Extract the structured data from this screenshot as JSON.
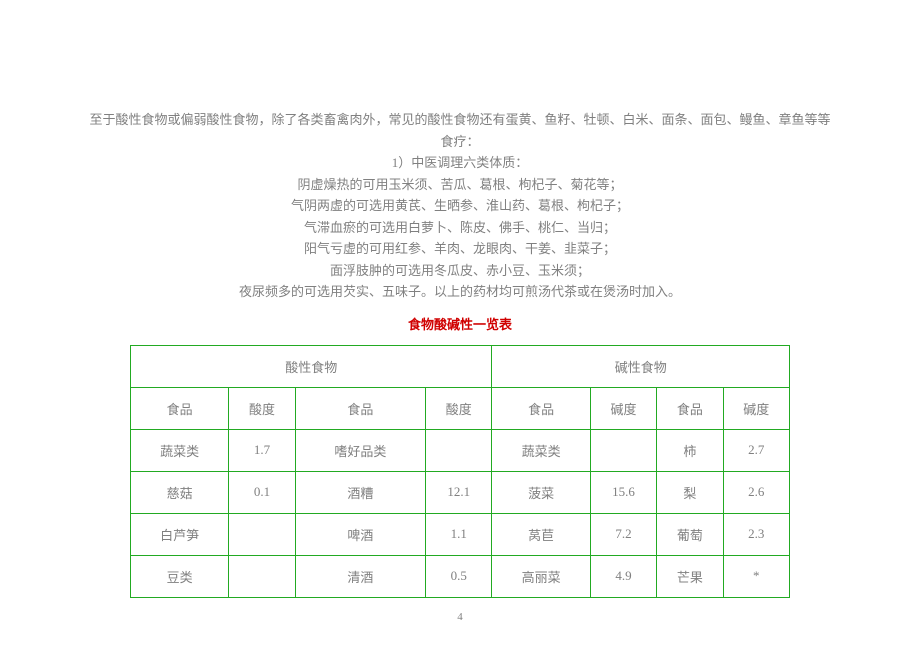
{
  "paragraphs": {
    "p1": "至于酸性食物或偏弱酸性食物，除了各类畜禽肉外，常见的酸性食物还有蛋黄、鱼籽、牡顿、白米、面条、面包、鳗鱼、章鱼等等",
    "p2": "食疗：",
    "p3": "1）中医调理六类体质：",
    "p4": "阴虚燥热的可用玉米须、苦瓜、葛根、枸杞子、菊花等；",
    "p5": "气阴两虚的可选用黄芪、生晒参、淮山药、葛根、枸杞子；",
    "p6": "气滞血瘀的可选用白萝卜、陈皮、佛手、桃仁、当归；",
    "p7": "阳气亏虚的可用红参、羊肉、龙眼肉、干姜、韭菜子；",
    "p8": "面浮肢肿的可选用冬瓜皮、赤小豆、玉米须；",
    "p9": "夜尿频多的可选用芡实、五味子。以上的药材均可煎汤代茶或在煲汤时加入。"
  },
  "table": {
    "title": "食物酸碱性一览表",
    "header_left": "酸性食物",
    "header_right": "碱性食物",
    "columns": [
      "食品",
      "酸度",
      "食品",
      "酸度",
      "食品",
      "碱度",
      "食品",
      "碱度"
    ],
    "rows": [
      [
        "蔬菜类",
        "1.7",
        "嗜好品类",
        "",
        "蔬菜类",
        "",
        "柿",
        "2.7"
      ],
      [
        "慈菇",
        "0.1",
        "酒糟",
        "12.1",
        "菠菜",
        "15.6",
        "梨",
        "2.6"
      ],
      [
        "白芦笋",
        "",
        "啤酒",
        "1.1",
        "莴苣",
        "7.2",
        "葡萄",
        "2.3"
      ],
      [
        "豆类",
        "",
        "清酒",
        "0.5",
        "高丽菜",
        "4.9",
        "芒果",
        "*"
      ]
    ]
  },
  "page_number": "4"
}
